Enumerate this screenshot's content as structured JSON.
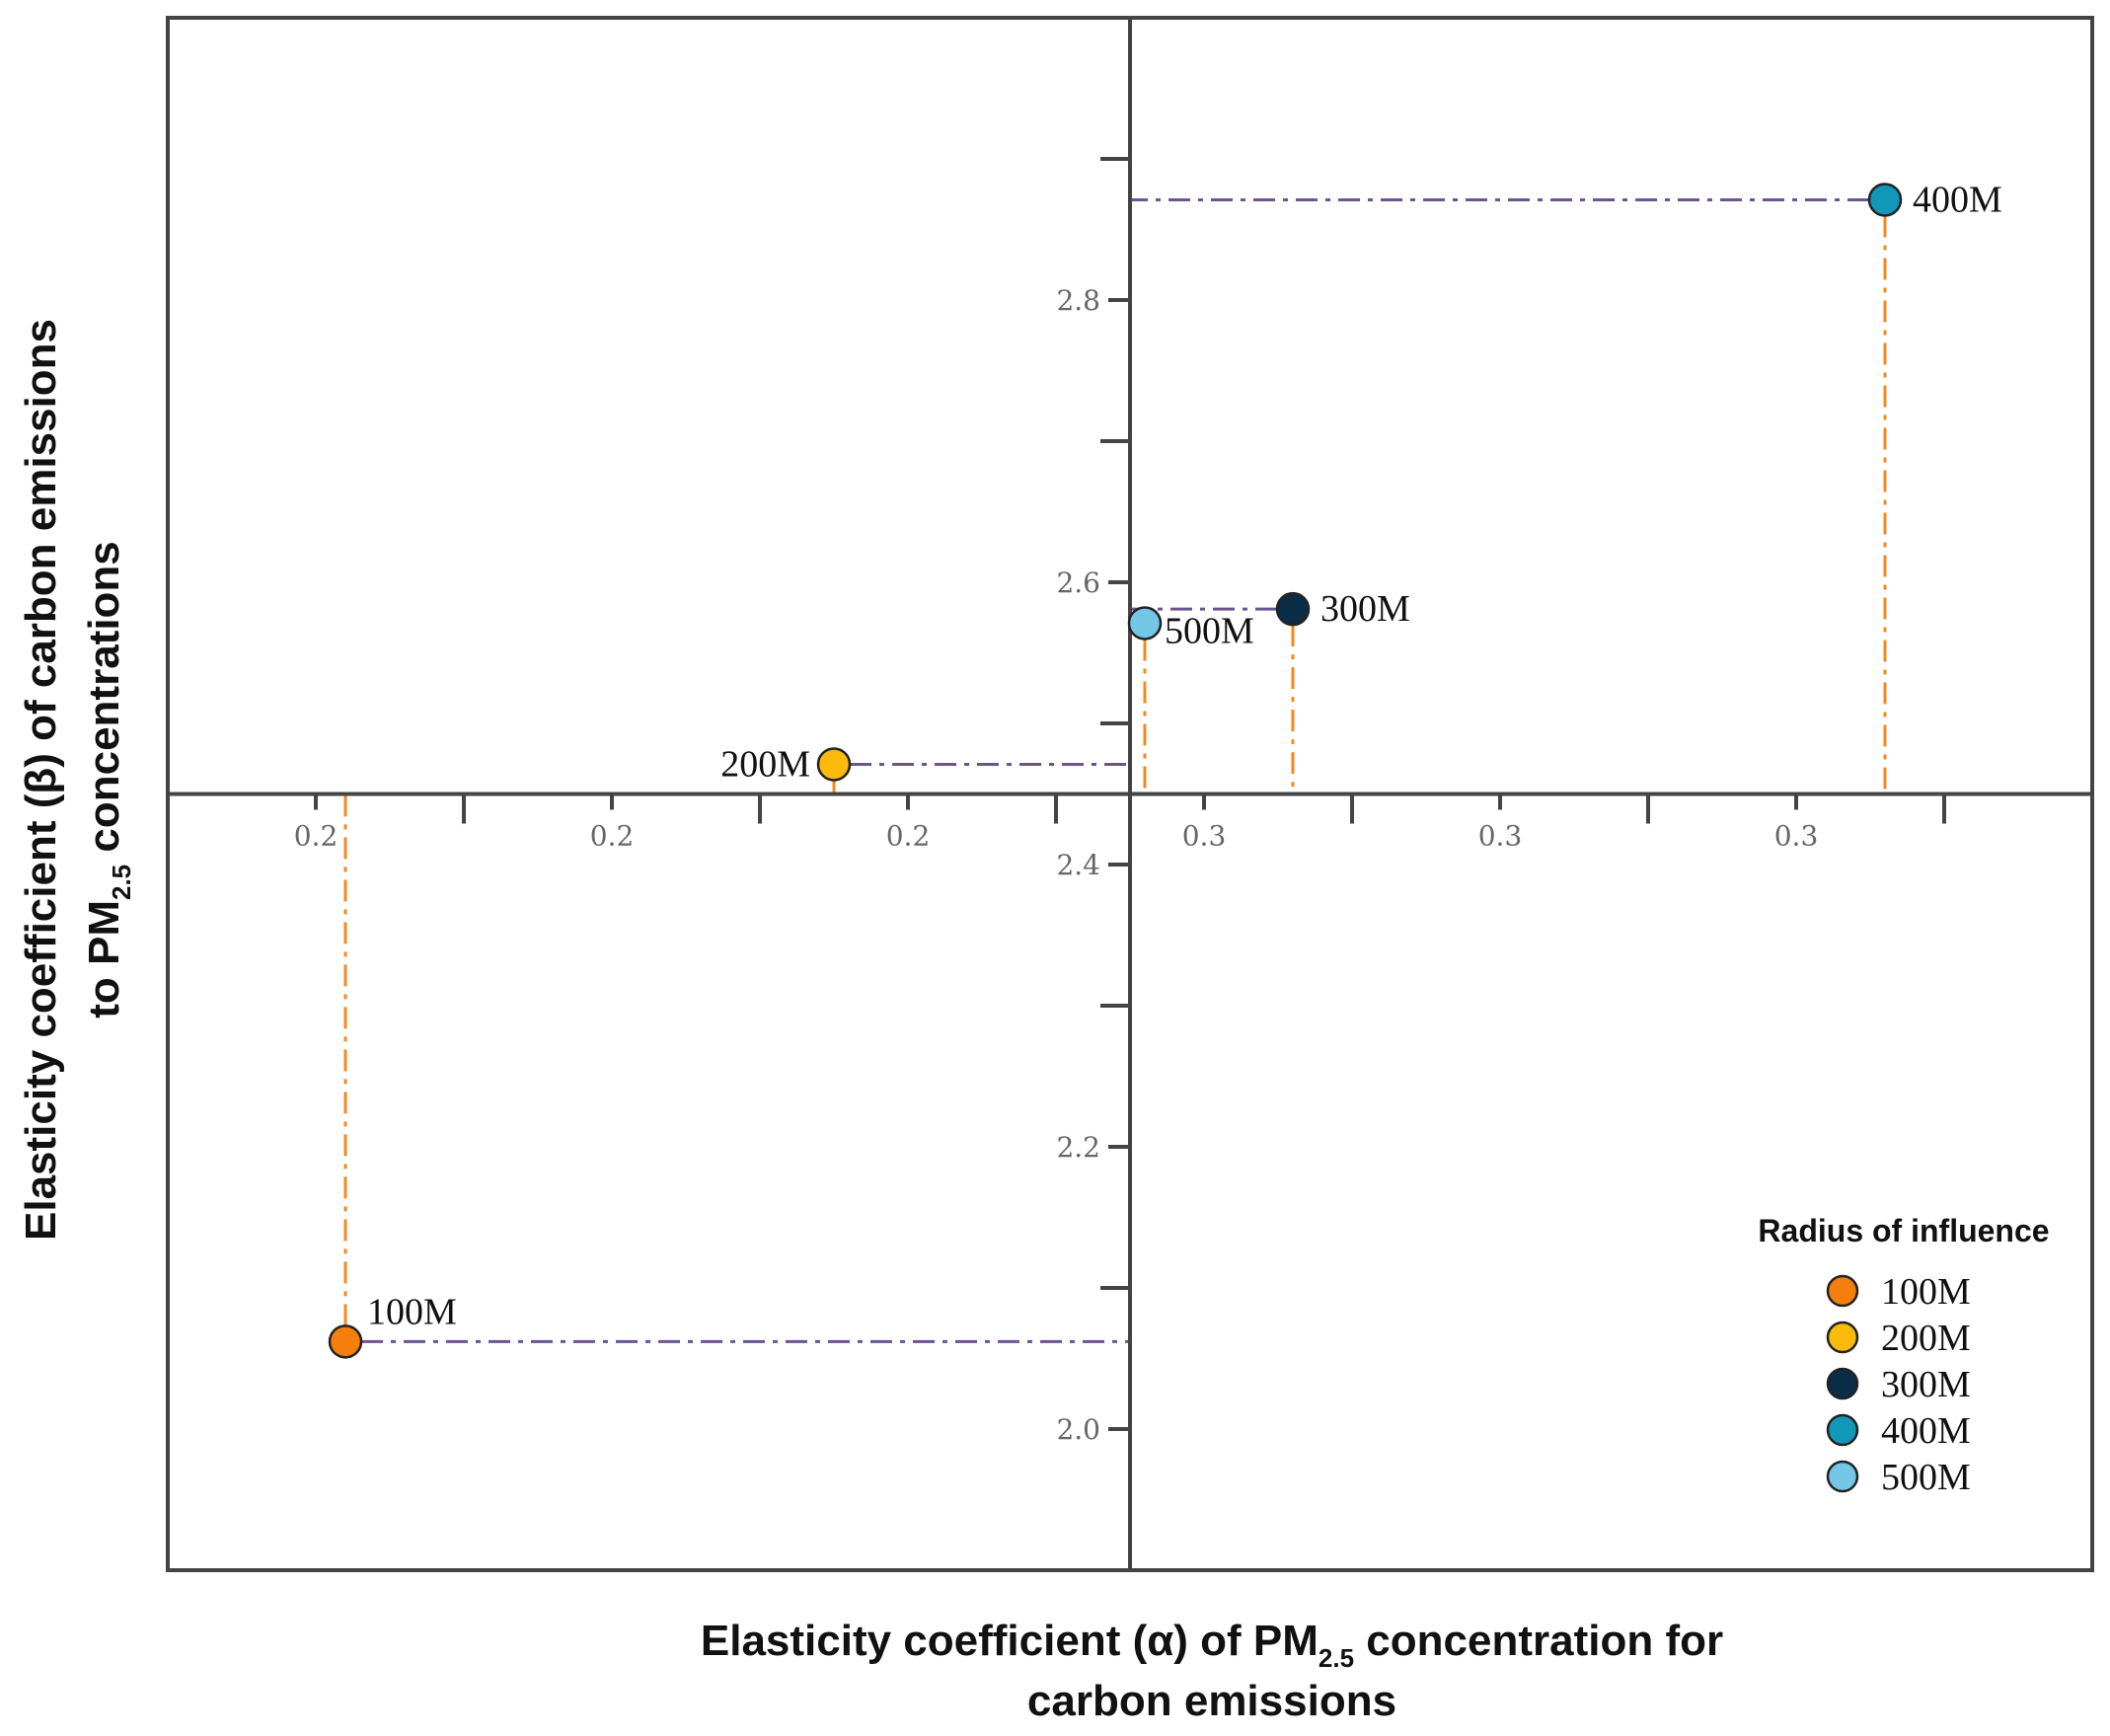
{
  "chart_data": {
    "type": "scatter",
    "title": "",
    "xlabel": "Elasticity coefficient  (α) of PM2.5 concentration for carbon emissions",
    "xlabel_parts": {
      "pre": "Elasticity coefficient  (α) of PM",
      "sub": "2.5",
      "post": " concentration for",
      "line2": "carbon emissions"
    },
    "ylabel": "Elasticity coefficient (β) of carbon emissions to PM2.5 concentrations",
    "ylabel_parts": {
      "line1": "Elasticity coefficient (β) of carbon emissions",
      "pre2": "to PM",
      "sub": "2.5",
      "post2": " concentrations"
    },
    "xlim": [
      0.19,
      0.32
    ],
    "ylim": [
      1.9,
      3.0
    ],
    "x_axis_crosses_y": 2.45,
    "y_axis_crosses_x": 0.255,
    "x_ticks": [
      {
        "value": 0.2,
        "label": "0.2"
      },
      {
        "value": 0.22,
        "label": "0.2"
      },
      {
        "value": 0.24,
        "label": "0.2"
      },
      {
        "value": 0.26,
        "label": "0.3"
      },
      {
        "value": 0.28,
        "label": "0.3"
      },
      {
        "value": 0.3,
        "label": "0.3"
      }
    ],
    "x_minor_ticks": [
      0.21,
      0.23,
      0.25,
      0.27,
      0.29,
      0.31
    ],
    "y_ticks": [
      {
        "value": 2.0,
        "label": "2.0"
      },
      {
        "value": 2.2,
        "label": "2.2"
      },
      {
        "value": 2.4,
        "label": "2.4"
      },
      {
        "value": 2.6,
        "label": "2.6"
      },
      {
        "value": 2.8,
        "label": "2.8"
      }
    ],
    "y_minor_ticks": [
      2.1,
      2.3,
      2.5,
      2.7,
      2.9
    ],
    "grid": false,
    "guide_colors": {
      "horizontal": "#6b5591",
      "vertical": "#f28a1c"
    },
    "legend": {
      "title": "Radius of influence",
      "placement": "bottom-right"
    },
    "series": [
      {
        "name": "100M",
        "x": 0.202,
        "y": 2.062,
        "color": "#f57f0e",
        "label_pos": "above-right"
      },
      {
        "name": "200M",
        "x": 0.235,
        "y": 2.471,
        "color": "#fbbb0c",
        "label_pos": "left"
      },
      {
        "name": "300M",
        "x": 0.266,
        "y": 2.581,
        "color": "#0b2c47",
        "label_pos": "right"
      },
      {
        "name": "400M",
        "x": 0.306,
        "y": 2.871,
        "color": "#1198b8",
        "label_pos": "right"
      },
      {
        "name": "500M",
        "x": 0.256,
        "y": 2.571,
        "color": "#74c6e6",
        "label_pos": "below-right"
      }
    ]
  }
}
